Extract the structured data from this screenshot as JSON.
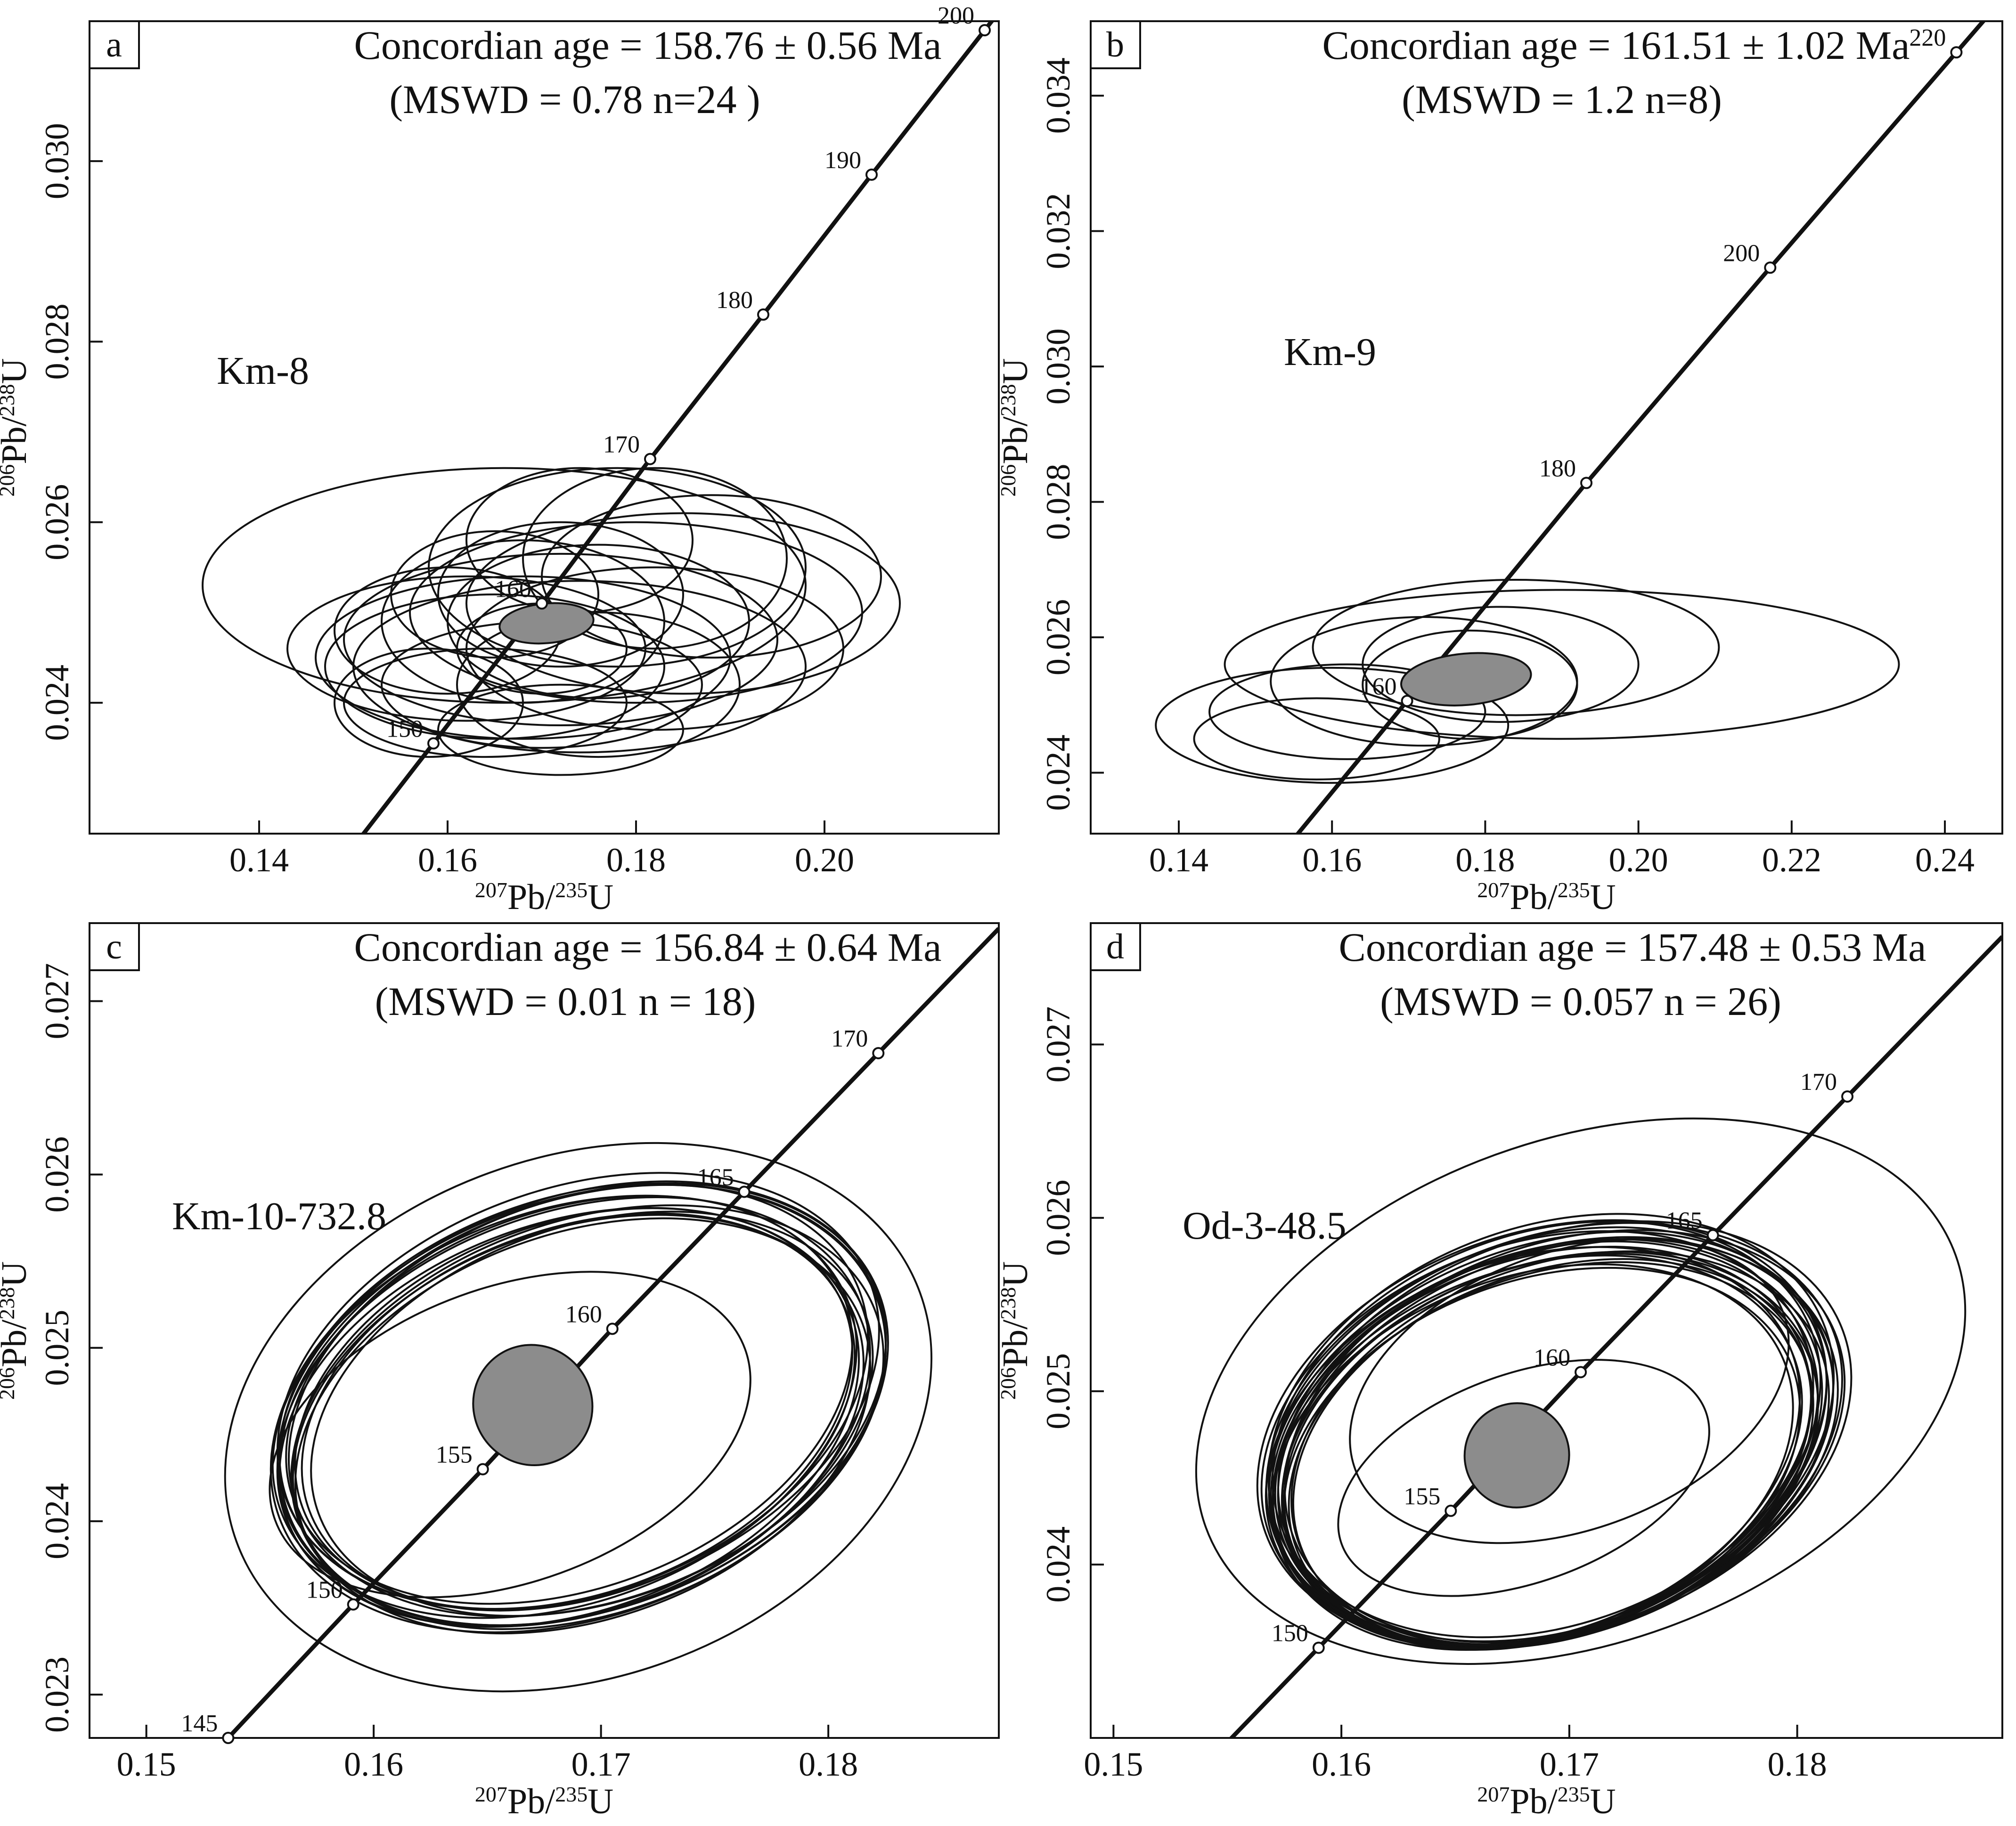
{
  "chart_data": [
    {
      "type": "scatter",
      "panel_label": "a",
      "title": "Concordian age = 158.76 ± 0.56 Ma",
      "subtitle": "(MSWD = 0.78 n=24 )",
      "sample_label": "Km-8",
      "xlabel": {
        "pre": "207",
        "base1": "Pb/",
        "sup2": "235",
        "base2": "U"
      },
      "ylabel": {
        "pre": "206",
        "base1": "Pb/",
        "sup2": "238",
        "base2": "U"
      },
      "xlim": [
        0.122,
        0.2185
      ],
      "ylim": [
        0.02255,
        0.03155
      ],
      "xticks": [
        "0.14",
        "0.16",
        "0.18",
        "0.20"
      ],
      "yticks": [
        "0.024",
        "0.026",
        "0.028",
        "0.030"
      ],
      "concordia_ages": [
        "150",
        "160",
        "170",
        "180",
        "190",
        "200"
      ],
      "concordia_points": [
        {
          "age": "150",
          "x": 0.1585,
          "y": 0.02355
        },
        {
          "age": "160",
          "x": 0.17,
          "y": 0.0251
        },
        {
          "age": "170",
          "x": 0.1815,
          "y": 0.0267
        },
        {
          "age": "180",
          "x": 0.1935,
          "y": 0.0283
        },
        {
          "age": "190",
          "x": 0.205,
          "y": 0.02985
        },
        {
          "age": "200",
          "x": 0.217,
          "y": 0.03145
        }
      ],
      "mean": {
        "x": 0.1705,
        "y": 0.02488,
        "x_err": 0.005,
        "y_err": 0.00022
      },
      "ellipses": [
        {
          "x": 0.166,
          "y": 0.0253,
          "x_err": 0.032,
          "y_err": 0.0013
        },
        {
          "x": 0.162,
          "y": 0.0246,
          "x_err": 0.019,
          "y_err": 0.0008
        },
        {
          "x": 0.165,
          "y": 0.0244,
          "x_err": 0.018,
          "y_err": 0.0008
        },
        {
          "x": 0.168,
          "y": 0.0245,
          "x_err": 0.022,
          "y_err": 0.0009
        },
        {
          "x": 0.172,
          "y": 0.0247,
          "x_err": 0.023,
          "y_err": 0.00095
        },
        {
          "x": 0.174,
          "y": 0.0244,
          "x_err": 0.024,
          "y_err": 0.00095
        },
        {
          "x": 0.17,
          "y": 0.0242,
          "x_err": 0.017,
          "y_err": 0.0007
        },
        {
          "x": 0.164,
          "y": 0.024,
          "x_err": 0.015,
          "y_err": 0.0006
        },
        {
          "x": 0.168,
          "y": 0.0249,
          "x_err": 0.015,
          "y_err": 0.0009
        },
        {
          "x": 0.172,
          "y": 0.0252,
          "x_err": 0.013,
          "y_err": 0.0008
        },
        {
          "x": 0.176,
          "y": 0.0249,
          "x_err": 0.016,
          "y_err": 0.00085
        },
        {
          "x": 0.18,
          "y": 0.025,
          "x_err": 0.024,
          "y_err": 0.001
        },
        {
          "x": 0.185,
          "y": 0.0251,
          "x_err": 0.023,
          "y_err": 0.001
        },
        {
          "x": 0.188,
          "y": 0.0254,
          "x_err": 0.018,
          "y_err": 0.0009
        },
        {
          "x": 0.178,
          "y": 0.0255,
          "x_err": 0.02,
          "y_err": 0.0011
        },
        {
          "x": 0.182,
          "y": 0.0256,
          "x_err": 0.014,
          "y_err": 0.001
        },
        {
          "x": 0.174,
          "y": 0.0258,
          "x_err": 0.012,
          "y_err": 0.0008
        },
        {
          "x": 0.165,
          "y": 0.0252,
          "x_err": 0.011,
          "y_err": 0.0007
        },
        {
          "x": 0.17,
          "y": 0.0246,
          "x_err": 0.009,
          "y_err": 0.0005
        },
        {
          "x": 0.16,
          "y": 0.0248,
          "x_err": 0.012,
          "y_err": 0.0007
        },
        {
          "x": 0.176,
          "y": 0.0242,
          "x_err": 0.015,
          "y_err": 0.0008
        },
        {
          "x": 0.182,
          "y": 0.0246,
          "x_err": 0.02,
          "y_err": 0.0009
        },
        {
          "x": 0.158,
          "y": 0.024,
          "x_err": 0.01,
          "y_err": 0.0006
        },
        {
          "x": 0.172,
          "y": 0.0237,
          "x_err": 0.013,
          "y_err": 0.0005
        }
      ]
    },
    {
      "type": "scatter",
      "panel_label": "b",
      "title": "Concordian age = 161.51 ± 1.02 Ma",
      "subtitle": "(MSWD = 1.2 n=8)",
      "sample_label": "Km-9",
      "xlabel": {
        "pre": "207",
        "base1": "Pb/",
        "sup2": "235",
        "base2": "U"
      },
      "ylabel": {
        "pre": "206",
        "base1": "Pb/",
        "sup2": "238",
        "base2": "U"
      },
      "xlim": [
        0.1285,
        0.2475
      ],
      "ylim": [
        0.0231,
        0.0351
      ],
      "xticks": [
        "0.14",
        "0.16",
        "0.18",
        "0.20",
        "0.22",
        "0.24"
      ],
      "yticks": [
        "0.024",
        "0.026",
        "0.028",
        "0.030",
        "0.032",
        "0.034"
      ],
      "concordia_ages": [
        "160",
        "180",
        "200",
        "220"
      ],
      "concordia_points": [
        {
          "age": "160",
          "x": 0.1698,
          "y": 0.02506
        },
        {
          "age": "180",
          "x": 0.1932,
          "y": 0.02828
        },
        {
          "age": "200",
          "x": 0.2172,
          "y": 0.03146
        },
        {
          "age": "220",
          "x": 0.2415,
          "y": 0.03464
        }
      ],
      "mean": {
        "x": 0.1775,
        "y": 0.02538,
        "x_err": 0.0085,
        "y_err": 0.00038
      },
      "ellipses": [
        {
          "x": 0.19,
          "y": 0.0256,
          "x_err": 0.044,
          "y_err": 0.0011
        },
        {
          "x": 0.184,
          "y": 0.02585,
          "x_err": 0.0265,
          "y_err": 0.001
        },
        {
          "x": 0.182,
          "y": 0.0256,
          "x_err": 0.018,
          "y_err": 0.00085
        },
        {
          "x": 0.172,
          "y": 0.02535,
          "x_err": 0.02,
          "y_err": 0.00095
        },
        {
          "x": 0.16,
          "y": 0.0247,
          "x_err": 0.023,
          "y_err": 0.00085
        },
        {
          "x": 0.162,
          "y": 0.0249,
          "x_err": 0.018,
          "y_err": 0.0007
        },
        {
          "x": 0.178,
          "y": 0.0253,
          "x_err": 0.014,
          "y_err": 0.0008
        },
        {
          "x": 0.158,
          "y": 0.0245,
          "x_err": 0.016,
          "y_err": 0.0006
        }
      ]
    },
    {
      "type": "scatter",
      "panel_label": "c",
      "title": "Concordian age = 156.84 ± 0.64 Ma",
      "subtitle": "(MSWD = 0.01 n = 18)",
      "sample_label": "Km-10-732.8",
      "xlabel": {
        "pre": "207",
        "base1": "Pb/",
        "sup2": "235",
        "base2": "U"
      },
      "ylabel": {
        "pre": "206",
        "base1": "Pb/",
        "sup2": "238",
        "base2": "U"
      },
      "xlim": [
        0.1475,
        0.1875
      ],
      "ylim": [
        0.02275,
        0.02745
      ],
      "xticks": [
        "0.15",
        "0.16",
        "0.17",
        "0.18"
      ],
      "yticks": [
        "0.023",
        "0.024",
        "0.025",
        "0.026",
        "0.027"
      ],
      "concordia_ages": [
        "145",
        "150",
        "155",
        "160",
        "165",
        "170"
      ],
      "concordia_points": [
        {
          "age": "145",
          "x": 0.1536,
          "y": 0.02275
        },
        {
          "age": "150",
          "x": 0.1591,
          "y": 0.02352
        },
        {
          "age": "155",
          "x": 0.1648,
          "y": 0.0243
        },
        {
          "age": "160",
          "x": 0.1705,
          "y": 0.02511
        },
        {
          "age": "165",
          "x": 0.1763,
          "y": 0.0259
        },
        {
          "age": "170",
          "x": 0.1822,
          "y": 0.0267
        }
      ],
      "mean": {
        "x": 0.167,
        "y": 0.02467,
        "x_err": 0.0026,
        "y_err": 0.00035
      },
      "ellipses": [
        {
          "x": 0.169,
          "y": 0.0246,
          "x_err": 0.016,
          "y_err": 0.0015
        },
        {
          "x": 0.169,
          "y": 0.02465,
          "x_err": 0.014,
          "y_err": 0.0012
        },
        {
          "x": 0.1688,
          "y": 0.02463,
          "x_err": 0.0135,
          "y_err": 0.00115
        },
        {
          "x": 0.1692,
          "y": 0.02467,
          "x_err": 0.0138,
          "y_err": 0.00118
        },
        {
          "x": 0.1686,
          "y": 0.0246,
          "x_err": 0.0132,
          "y_err": 0.00112
        },
        {
          "x": 0.1694,
          "y": 0.0247,
          "x_err": 0.0136,
          "y_err": 0.00116
        },
        {
          "x": 0.169,
          "y": 0.02458,
          "x_err": 0.013,
          "y_err": 0.0011
        },
        {
          "x": 0.1688,
          "y": 0.02472,
          "x_err": 0.0134,
          "y_err": 0.00114
        },
        {
          "x": 0.1696,
          "y": 0.02462,
          "x_err": 0.0128,
          "y_err": 0.00108
        },
        {
          "x": 0.1684,
          "y": 0.02466,
          "x_err": 0.0133,
          "y_err": 0.00113
        },
        {
          "x": 0.1692,
          "y": 0.02455,
          "x_err": 0.0131,
          "y_err": 0.00111
        },
        {
          "x": 0.169,
          "y": 0.02475,
          "x_err": 0.0137,
          "y_err": 0.00117
        },
        {
          "x": 0.1686,
          "y": 0.0247,
          "x_err": 0.0129,
          "y_err": 0.00109
        },
        {
          "x": 0.1694,
          "y": 0.0246,
          "x_err": 0.0135,
          "y_err": 0.00113
        },
        {
          "x": 0.1688,
          "y": 0.02465,
          "x_err": 0.0127,
          "y_err": 0.00107
        },
        {
          "x": 0.1692,
          "y": 0.02468,
          "x_err": 0.0139,
          "y_err": 0.00119
        },
        {
          "x": 0.169,
          "y": 0.02463,
          "x_err": 0.0126,
          "y_err": 0.00106
        },
        {
          "x": 0.166,
          "y": 0.0245,
          "x_err": 0.011,
          "y_err": 0.00085
        }
      ]
    },
    {
      "type": "scatter",
      "panel_label": "d",
      "title": "Concordian age = 157.48 ± 0.53 Ma",
      "subtitle": "(MSWD = 0.057 n = 26)",
      "sample_label": "Od-3-48.5",
      "xlabel": {
        "pre": "207",
        "base1": "Pb/",
        "sup2": "235",
        "base2": "U"
      },
      "ylabel": {
        "pre": "206",
        "base1": "Pb/",
        "sup2": "238",
        "base2": "U"
      },
      "xlim": [
        0.149,
        0.189
      ],
      "ylim": [
        0.023,
        0.0277
      ],
      "xticks": [
        "0.15",
        "0.16",
        "0.17",
        "0.18"
      ],
      "yticks": [
        "0.024",
        "0.025",
        "0.026",
        "0.027"
      ],
      "concordia_ages": [
        "150",
        "155",
        "160",
        "165",
        "170"
      ],
      "concordia_points": [
        {
          "age": "150",
          "x": 0.159,
          "y": 0.02352
        },
        {
          "age": "155",
          "x": 0.1648,
          "y": 0.02431
        },
        {
          "age": "160",
          "x": 0.1705,
          "y": 0.02511
        },
        {
          "age": "165",
          "x": 0.1763,
          "y": 0.0259
        },
        {
          "age": "170",
          "x": 0.1822,
          "y": 0.0267
        }
      ],
      "mean": {
        "x": 0.1677,
        "y": 0.02463,
        "x_err": 0.0023,
        "y_err": 0.0003
      },
      "ellipses": [
        {
          "x": 0.1705,
          "y": 0.025,
          "x_err": 0.0175,
          "y_err": 0.00145
        },
        {
          "x": 0.169,
          "y": 0.0247,
          "x_err": 0.0125,
          "y_err": 0.0011
        },
        {
          "x": 0.1692,
          "y": 0.02472,
          "x_err": 0.0128,
          "y_err": 0.00112
        },
        {
          "x": 0.1688,
          "y": 0.02468,
          "x_err": 0.0122,
          "y_err": 0.00108
        },
        {
          "x": 0.1694,
          "y": 0.02475,
          "x_err": 0.013,
          "y_err": 0.00114
        },
        {
          "x": 0.1686,
          "y": 0.02465,
          "x_err": 0.012,
          "y_err": 0.00106
        },
        {
          "x": 0.1696,
          "y": 0.0247,
          "x_err": 0.0126,
          "y_err": 0.0011
        },
        {
          "x": 0.169,
          "y": 0.02478,
          "x_err": 0.0124,
          "y_err": 0.00113
        },
        {
          "x": 0.1684,
          "y": 0.02462,
          "x_err": 0.0118,
          "y_err": 0.00104
        },
        {
          "x": 0.1698,
          "y": 0.02474,
          "x_err": 0.0127,
          "y_err": 0.00111
        },
        {
          "x": 0.1692,
          "y": 0.02466,
          "x_err": 0.0121,
          "y_err": 0.00107
        },
        {
          "x": 0.1688,
          "y": 0.02476,
          "x_err": 0.0129,
          "y_err": 0.00115
        },
        {
          "x": 0.1694,
          "y": 0.02464,
          "x_err": 0.0119,
          "y_err": 0.00105
        },
        {
          "x": 0.169,
          "y": 0.0247,
          "x_err": 0.0123,
          "y_err": 0.00109
        },
        {
          "x": 0.1686,
          "y": 0.02473,
          "x_err": 0.0125,
          "y_err": 0.00112
        },
        {
          "x": 0.1696,
          "y": 0.02467,
          "x_err": 0.0122,
          "y_err": 0.00106
        },
        {
          "x": 0.1692,
          "y": 0.02479,
          "x_err": 0.0128,
          "y_err": 0.00116
        },
        {
          "x": 0.1688,
          "y": 0.02461,
          "x_err": 0.0117,
          "y_err": 0.00103
        },
        {
          "x": 0.1694,
          "y": 0.02471,
          "x_err": 0.0126,
          "y_err": 0.0011
        },
        {
          "x": 0.169,
          "y": 0.02466,
          "x_err": 0.012,
          "y_err": 0.00106
        },
        {
          "x": 0.1698,
          "y": 0.02476,
          "x_err": 0.013,
          "y_err": 0.00114
        },
        {
          "x": 0.1684,
          "y": 0.02468,
          "x_err": 0.0121,
          "y_err": 0.00108
        },
        {
          "x": 0.1692,
          "y": 0.02463,
          "x_err": 0.0119,
          "y_err": 0.00104
        },
        {
          "x": 0.169,
          "y": 0.02474,
          "x_err": 0.0127,
          "y_err": 0.00113
        },
        {
          "x": 0.17,
          "y": 0.025,
          "x_err": 0.01,
          "y_err": 0.0008
        },
        {
          "x": 0.168,
          "y": 0.0245,
          "x_err": 0.0085,
          "y_err": 0.0006
        }
      ]
    }
  ]
}
